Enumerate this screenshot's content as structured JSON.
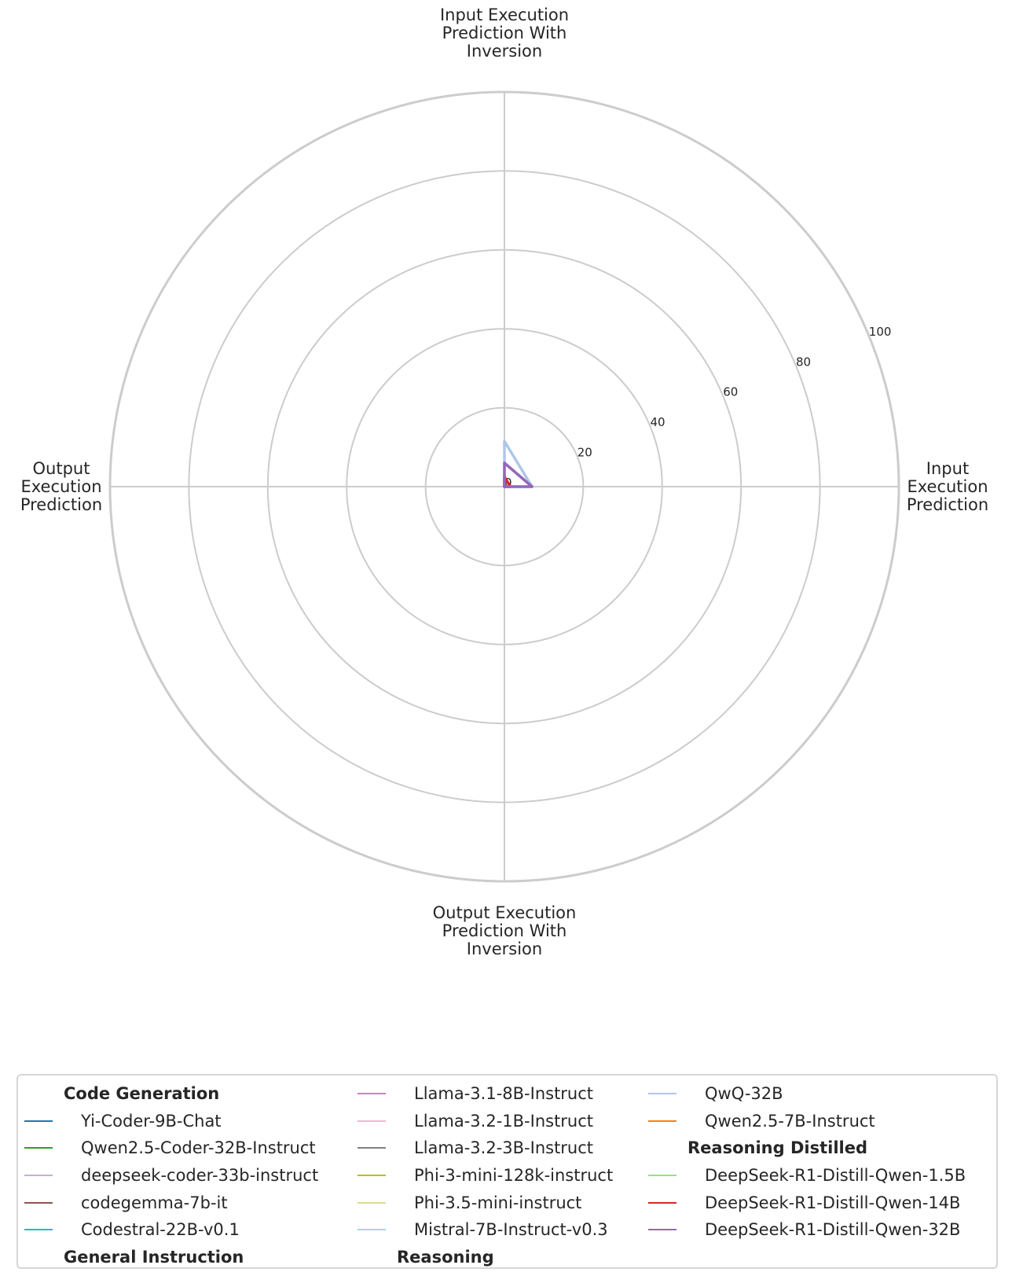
{
  "chart_data": {
    "type": "radar",
    "axes": [
      "Input Execution Prediction",
      "Input Execution Prediction With Inversion",
      "Output Execution Prediction",
      "Output Execution Prediction With Inversion"
    ],
    "axis_label_lines": [
      [
        "Input",
        "Execution",
        "Prediction"
      ],
      [
        "Input Execution",
        "Prediction With",
        "Inversion"
      ],
      [
        "Output",
        "Execution",
        "Prediction"
      ],
      [
        "Output Execution",
        "Prediction With",
        "Inversion"
      ]
    ],
    "rlim": [
      0,
      100
    ],
    "r_ticks": [
      0,
      20,
      40,
      60,
      80,
      100
    ],
    "r_tick_labels": [
      "0",
      "20",
      "40",
      "60",
      "80",
      "100"
    ],
    "grid": true,
    "legend_position": "bottom",
    "series": [
      {
        "name": "Yi-Coder-9B-Chat",
        "group": "Code Generation",
        "color": "#1f77b4",
        "values": [
          0,
          0,
          0,
          0
        ]
      },
      {
        "name": "Qwen2.5-Coder-32B-Instruct",
        "group": "Code Generation",
        "color": "#2ca02c",
        "values": [
          0.3,
          0,
          0,
          0
        ]
      },
      {
        "name": "deepseek-coder-33b-instruct",
        "group": "Code Generation",
        "color": "#c5b0d5",
        "values": [
          0,
          0,
          0,
          0
        ]
      },
      {
        "name": "codegemma-7b-it",
        "group": "Code Generation",
        "color": "#8c564b",
        "values": [
          0,
          0,
          0,
          0
        ]
      },
      {
        "name": "Codestral-22B-v0.1",
        "group": "Code Generation",
        "color": "#17becf",
        "values": [
          0,
          0,
          0,
          0
        ]
      },
      {
        "name": "Llama-3.1-8B-Instruct",
        "group": "General Instruction",
        "color": "#e377c2",
        "values": [
          0,
          0,
          0,
          0
        ]
      },
      {
        "name": "Llama-3.2-1B-Instruct",
        "group": "General Instruction",
        "color": "#f7b6d2",
        "values": [
          0,
          0,
          0,
          0
        ]
      },
      {
        "name": "Llama-3.2-3B-Instruct",
        "group": "General Instruction",
        "color": "#7f7f7f",
        "values": [
          0,
          0,
          0,
          0
        ]
      },
      {
        "name": "Phi-3-mini-128k-instruct",
        "group": "General Instruction",
        "color": "#bcbd22",
        "values": [
          0,
          0.5,
          0,
          0
        ]
      },
      {
        "name": "Phi-3.5-mini-instruct",
        "group": "General Instruction",
        "color": "#dbdb8d",
        "values": [
          0,
          0,
          0,
          0
        ]
      },
      {
        "name": "Mistral-7B-Instruct-v0.3",
        "group": "General Instruction",
        "color": "#9edae5",
        "values": [
          0,
          0,
          0,
          0
        ]
      },
      {
        "name": "QwQ-32B",
        "group": "Reasoning",
        "color": "#aec7e8",
        "values": [
          7,
          11.5,
          0,
          0
        ]
      },
      {
        "name": "Qwen2.5-7B-Instruct",
        "group": "Reasoning",
        "color": "#ff7f0e",
        "values": [
          0.5,
          0,
          0,
          0
        ]
      },
      {
        "name": "DeepSeek-R1-Distill-Qwen-1.5B",
        "group": "Reasoning Distilled",
        "color": "#98df8a",
        "values": [
          0,
          0,
          0,
          0
        ]
      },
      {
        "name": "DeepSeek-R1-Distill-Qwen-14B",
        "group": "Reasoning Distilled",
        "color": "#d62728",
        "values": [
          1.5,
          2.5,
          0,
          0
        ]
      },
      {
        "name": "DeepSeek-R1-Distill-Qwen-32B",
        "group": "Reasoning Distilled",
        "color": "#9467bd",
        "values": [
          7,
          6,
          0,
          0
        ]
      }
    ],
    "legend_columns": [
      [
        {
          "text": "Code Generation",
          "header": true
        },
        {
          "text": "Yi-Coder-9B-Chat",
          "color": "#1f77b4"
        },
        {
          "text": "Qwen2.5-Coder-32B-Instruct",
          "color": "#2ca02c"
        },
        {
          "text": "deepseek-coder-33b-instruct",
          "color": "#c5b0d5"
        },
        {
          "text": "codegemma-7b-it",
          "color": "#8c564b"
        },
        {
          "text": "Codestral-22B-v0.1",
          "color": "#17becf"
        },
        {
          "text": "General Instruction",
          "header": true
        }
      ],
      [
        {
          "text": "Llama-3.1-8B-Instruct",
          "color": "#e377c2"
        },
        {
          "text": "Llama-3.2-1B-Instruct",
          "color": "#f7b6d2"
        },
        {
          "text": "Llama-3.2-3B-Instruct",
          "color": "#7f7f7f"
        },
        {
          "text": "Phi-3-mini-128k-instruct",
          "color": "#bcbd22"
        },
        {
          "text": "Phi-3.5-mini-instruct",
          "color": "#dbdb8d"
        },
        {
          "text": "Mistral-7B-Instruct-v0.3",
          "color": "#9edae5"
        },
        {
          "text": "Reasoning",
          "header": true
        }
      ],
      [
        {
          "text": "QwQ-32B",
          "color": "#aec7e8"
        },
        {
          "text": "Qwen2.5-7B-Instruct",
          "color": "#ff7f0e"
        },
        {
          "text": "Reasoning Distilled",
          "header": true
        },
        {
          "text": "DeepSeek-R1-Distill-Qwen-1.5B",
          "color": "#98df8a"
        },
        {
          "text": "DeepSeek-R1-Distill-Qwen-14B",
          "color": "#d62728"
        },
        {
          "text": "DeepSeek-R1-Distill-Qwen-32B",
          "color": "#9467bd"
        }
      ]
    ]
  }
}
